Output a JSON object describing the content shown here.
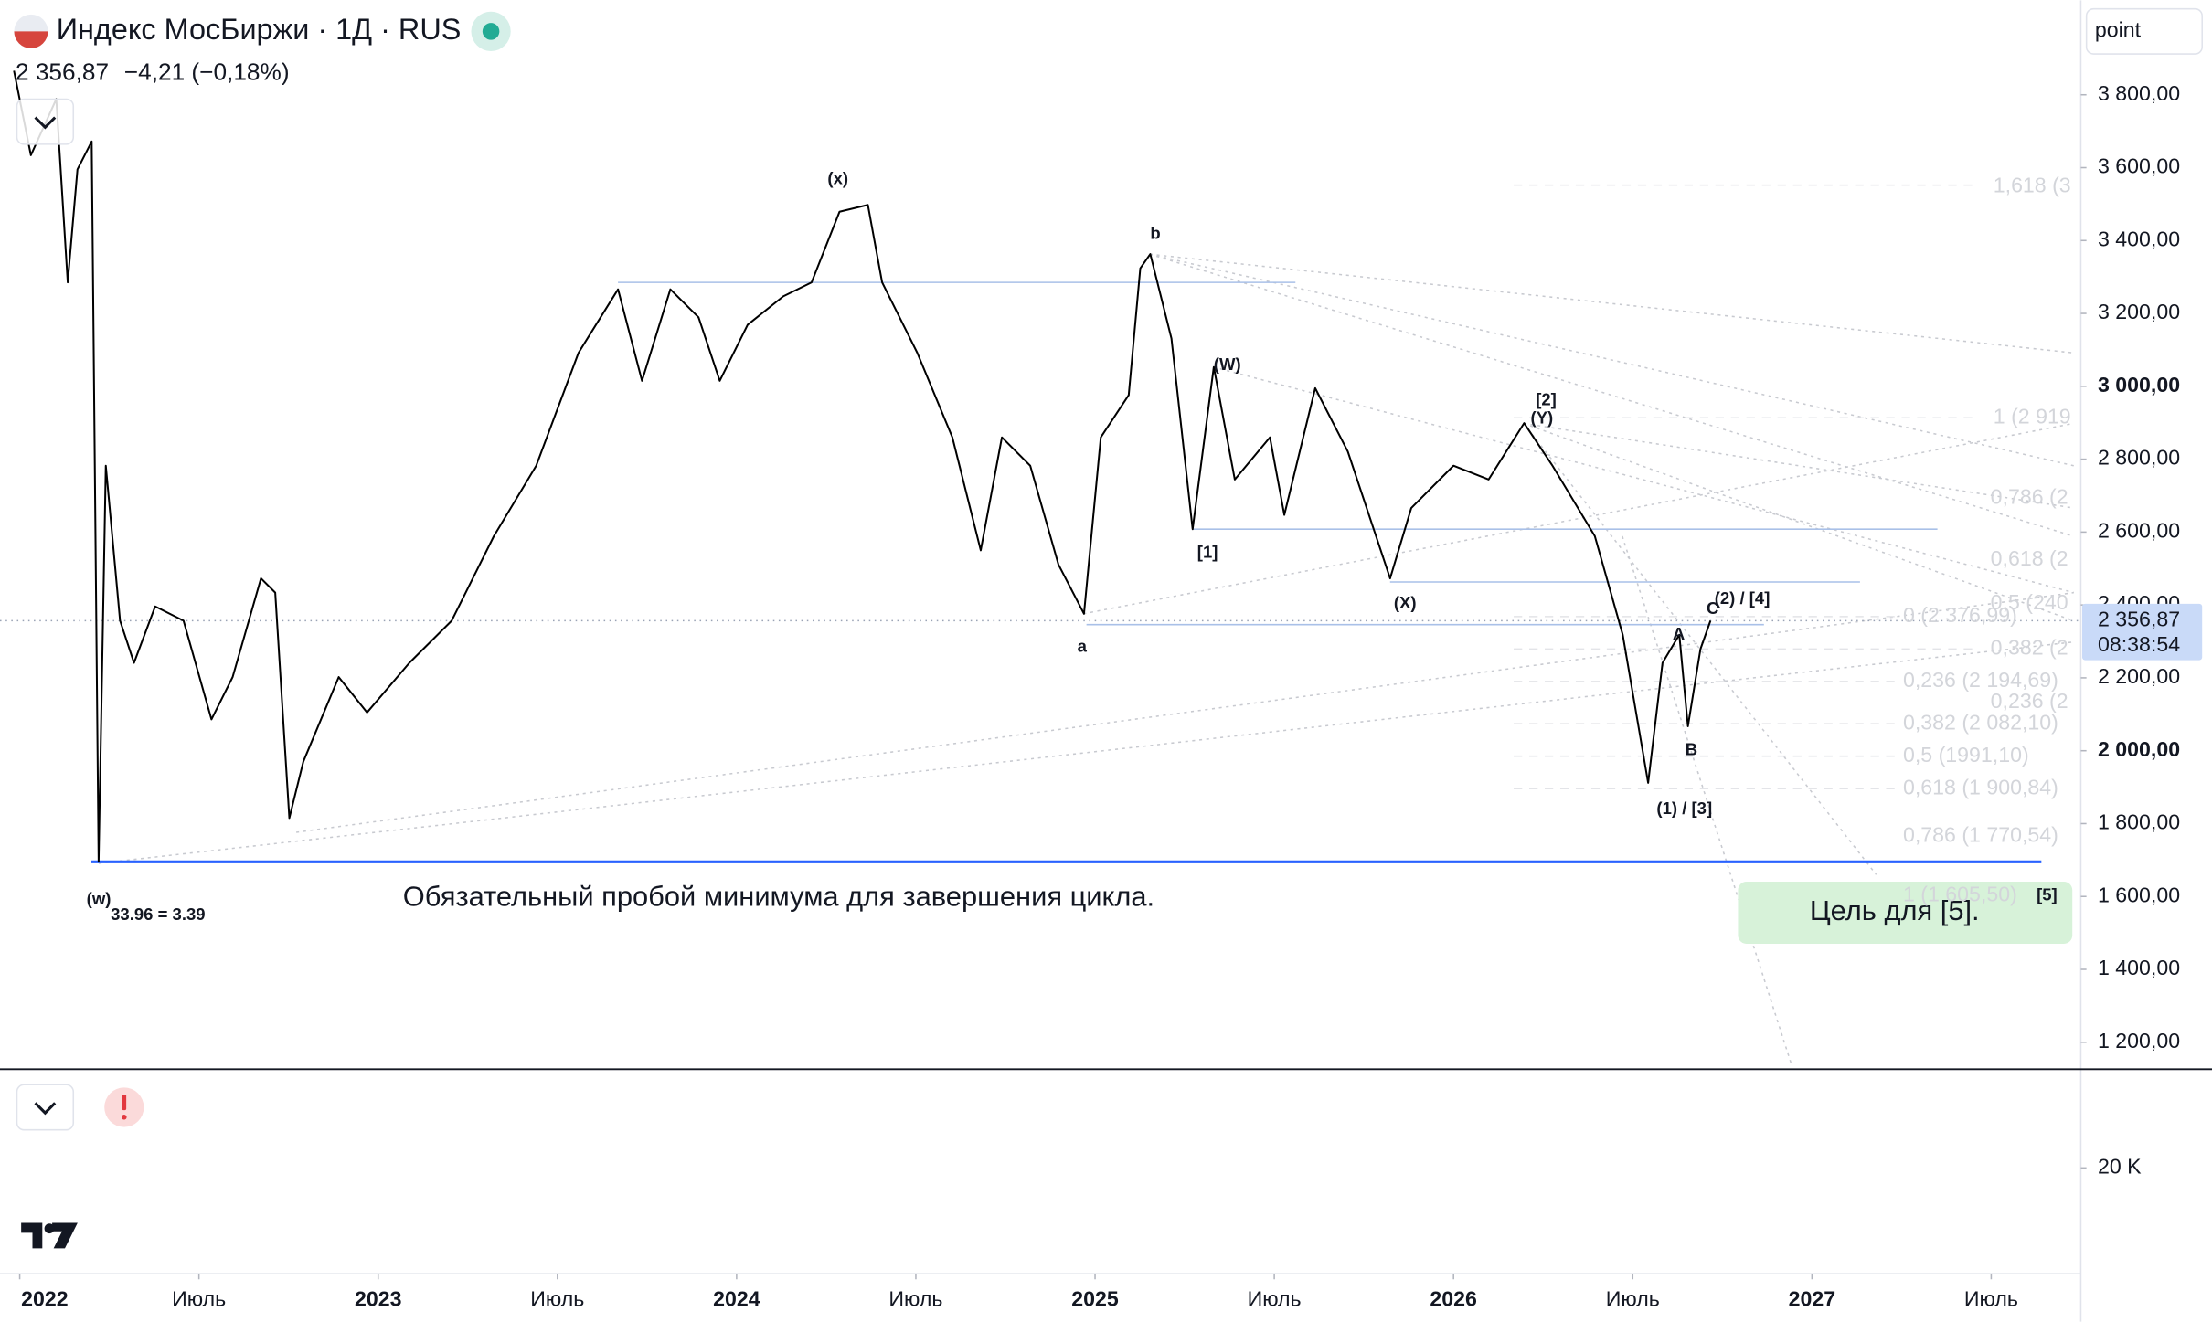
{
  "header": {
    "title": "Индекс МосБиржи · 1Д · RUS",
    "price": "2 356,87",
    "change": "−4,21 (−0,18%)"
  },
  "scale_unit": "point",
  "chart_data": {
    "type": "line",
    "color": "#000000",
    "x": [
      2021.984,
      2022.031,
      2022.102,
      2022.134,
      2022.161,
      2022.201,
      2022.22,
      2022.24,
      2022.28,
      2022.319,
      2022.378,
      2022.457,
      2022.535,
      2022.594,
      2022.673,
      2022.713,
      2022.752,
      2022.791,
      2022.89,
      2022.969,
      2023.087,
      2023.205,
      2023.323,
      2023.441,
      2023.559,
      2023.669,
      2023.736,
      2023.815,
      2023.894,
      2023.953,
      2024.031,
      2024.13,
      2024.209,
      2024.287,
      2024.366,
      2024.406,
      2024.504,
      2024.602,
      2024.681,
      2024.74,
      2024.819,
      2024.898,
      2024.969,
      2025.016,
      2025.094,
      2025.126,
      2025.154,
      2025.213,
      2025.272,
      2025.331,
      2025.39,
      2025.488,
      2025.528,
      2025.614,
      2025.705,
      2025.823,
      2025.882,
      2026.0,
      2026.098,
      2026.197,
      2026.276,
      2026.394,
      2026.472,
      2026.543,
      2026.583,
      2026.63,
      2026.654,
      2026.689,
      2026.717
    ],
    "values": [
      3866,
      3634,
      3788,
      3285,
      3595,
      3672,
      1695,
      2782,
      2357,
      2241,
      2396,
      2357,
      2086,
      2202,
      2473,
      2434,
      1815,
      1970,
      2202,
      2105,
      2241,
      2357,
      2589,
      2782,
      3092,
      3266,
      3015,
      3266,
      3189,
      3015,
      3169,
      3247,
      3285,
      3479,
      3498,
      3285,
      3092,
      2860,
      2550,
      2860,
      2782,
      2511,
      2376,
      2860,
      2976,
      3324,
      3363,
      3131,
      2608,
      3053,
      2744,
      2860,
      2647,
      2995,
      2821,
      2473,
      2666,
      2782,
      2744,
      2899,
      2782,
      2589,
      2318,
      1912,
      2241,
      2318,
      2067,
      2279,
      2356.87
    ],
    "xlim": [
      2021.945,
      2027.75
    ],
    "ylim": [
      1126,
      4059
    ],
    "xticks": [
      {
        "value": 2022,
        "label": "2022"
      },
      {
        "value": 2022.5,
        "label": "Июль"
      },
      {
        "value": 2023,
        "label": "2023"
      },
      {
        "value": 2023.5,
        "label": "Июль"
      },
      {
        "value": 2024,
        "label": "2024"
      },
      {
        "value": 2024.5,
        "label": "Июль"
      },
      {
        "value": 2025,
        "label": "2025"
      },
      {
        "value": 2025.5,
        "label": "Июль"
      },
      {
        "value": 2026,
        "label": "2026"
      },
      {
        "value": 2026.5,
        "label": "Июль"
      },
      {
        "value": 2027,
        "label": "2027"
      },
      {
        "value": 2027.5,
        "label": "Июль"
      }
    ],
    "yticks": [
      {
        "value": 3800,
        "label": "3 800,00"
      },
      {
        "value": 3600,
        "label": "3 600,00"
      },
      {
        "value": 3400,
        "label": "3 400,00"
      },
      {
        "value": 3200,
        "label": "3 200,00"
      },
      {
        "value": 3000,
        "label": "3 000,00"
      },
      {
        "value": 2800,
        "label": "2 800,00"
      },
      {
        "value": 2600,
        "label": "2 600,00"
      },
      {
        "value": 2400,
        "label": "2 400,00"
      },
      {
        "value": 2200,
        "label": "2 200,00"
      },
      {
        "value": 2000,
        "label": "2 000,00"
      },
      {
        "value": 1800,
        "label": "1 800,00"
      },
      {
        "value": 1600,
        "label": "1 600,00"
      },
      {
        "value": 1400,
        "label": "1 400,00"
      },
      {
        "value": 1200,
        "label": "1 200,00"
      }
    ],
    "price_label": {
      "value": 2356.87,
      "label": "2 356,87"
    },
    "countdown": "08:38:54",
    "levels": [
      {
        "value": 1695,
        "from": 2022.2,
        "to": 2027.64
      },
      {
        "value": 3285,
        "from": 2023.669,
        "to": 2025.559
      },
      {
        "value": 2608,
        "from": 2025.272,
        "to": 2027.35
      },
      {
        "value": 2463,
        "from": 2025.823,
        "to": 2027.134
      },
      {
        "value": 2346,
        "from": 2024.976,
        "to": 2026.866
      }
    ],
    "annotations": [
      "(x)",
      "b",
      "(W)",
      "[2]",
      "(Y)",
      "[1]",
      "(X)",
      "a",
      "(2) / [4]",
      "A",
      "C",
      "B",
      "(1) / [3]",
      "(w)",
      "33.96 = 3.39",
      "[5]",
      "Обязательный пробой минимума для завершения цикла.",
      "Цель для [5]."
    ],
    "fib_labels": [
      "1,618 (3",
      "1 (2 919",
      "0,786 (2",
      "0,618 (2",
      "0,5 (240",
      "0 (2 376,99)",
      "0,382 (2",
      "0,236 (2 194,69)",
      "0,236 (2",
      "0,382 (2 082,10)",
      "0,5 (1991,10)",
      "0,618 (1 900,84)",
      "0,786 (1 770,54)",
      "1 (1 605,50)"
    ]
  },
  "volume_pane": {
    "ticks": [
      {
        "value": 20000,
        "label": "20 K"
      }
    ]
  }
}
